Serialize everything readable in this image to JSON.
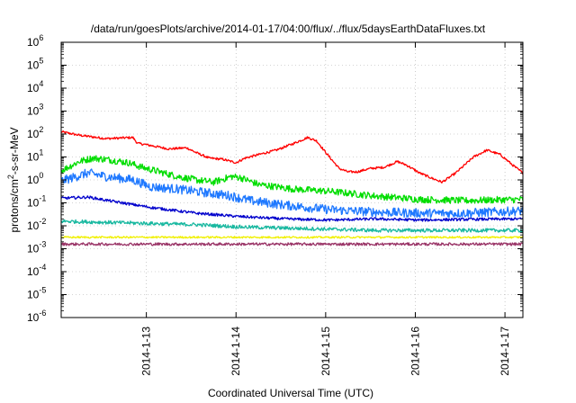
{
  "chart_data": {
    "type": "line",
    "title": "/data/run/goesPlots/archive/2014-01-17/04:00/flux/../flux/5daysEarthDataFluxes.txt",
    "xlabel": "Coordinated Universal Time (UTC)",
    "ylabel": {
      "base": "protons/cm",
      "sup": "2",
      "rest": "-s-sr-MeV"
    },
    "yscale": "log",
    "ylim_exp": [
      -6,
      6
    ],
    "xlim_days": [
      0,
      5.15
    ],
    "x_ticks": [
      {
        "day": 0.95,
        "label": "2014-1-13"
      },
      {
        "day": 1.95,
        "label": "2014-1-14"
      },
      {
        "day": 2.95,
        "label": "2014-1-15"
      },
      {
        "day": 3.95,
        "label": "2014-1-16"
      },
      {
        "day": 4.95,
        "label": "2014-1-17"
      }
    ],
    "y_ticks_exp": [
      -6,
      -5,
      -4,
      -3,
      -2,
      -1,
      0,
      1,
      2,
      3,
      4,
      5,
      6
    ],
    "grid": true,
    "legend": "none",
    "series": [
      {
        "color": "#ff0000",
        "noise": 0.05,
        "profile": [
          [
            0,
            2.1
          ],
          [
            0.2,
            1.95
          ],
          [
            0.5,
            1.8
          ],
          [
            0.8,
            1.85
          ],
          [
            0.85,
            1.6
          ],
          [
            1.0,
            1.5
          ],
          [
            1.2,
            1.35
          ],
          [
            1.4,
            1.4
          ],
          [
            1.5,
            1.2
          ],
          [
            1.65,
            0.95
          ],
          [
            1.8,
            0.9
          ],
          [
            1.95,
            0.75
          ],
          [
            2.05,
            0.95
          ],
          [
            2.2,
            1.1
          ],
          [
            2.4,
            1.3
          ],
          [
            2.6,
            1.6
          ],
          [
            2.75,
            1.85
          ],
          [
            2.85,
            1.7
          ],
          [
            2.95,
            1.2
          ],
          [
            3.1,
            0.5
          ],
          [
            3.2,
            0.35
          ],
          [
            3.3,
            0.35
          ],
          [
            3.45,
            0.5
          ],
          [
            3.6,
            0.55
          ],
          [
            3.75,
            0.8
          ],
          [
            3.85,
            0.65
          ],
          [
            4.0,
            0.3
          ],
          [
            4.15,
            0.05
          ],
          [
            4.25,
            -0.1
          ],
          [
            4.4,
            0.3
          ],
          [
            4.6,
            1.0
          ],
          [
            4.75,
            1.3
          ],
          [
            4.9,
            1.1
          ],
          [
            5.05,
            0.6
          ],
          [
            5.15,
            0.3
          ]
        ]
      },
      {
        "color": "#00dd00",
        "noise": 0.15,
        "profile": [
          [
            0,
            0.4
          ],
          [
            0.2,
            0.8
          ],
          [
            0.35,
            0.95
          ],
          [
            0.5,
            0.9
          ],
          [
            0.75,
            0.75
          ],
          [
            0.9,
            0.55
          ],
          [
            1.1,
            0.35
          ],
          [
            1.3,
            0.15
          ],
          [
            1.5,
            0.0
          ],
          [
            1.7,
            -0.1
          ],
          [
            1.9,
            0.15
          ],
          [
            2.0,
            0.1
          ],
          [
            2.2,
            -0.2
          ],
          [
            2.6,
            -0.4
          ],
          [
            3.0,
            -0.5
          ],
          [
            3.5,
            -0.7
          ],
          [
            4.0,
            -0.85
          ],
          [
            4.5,
            -0.9
          ],
          [
            5.15,
            -0.85
          ]
        ]
      },
      {
        "color": "#1e78ff",
        "noise": 0.2,
        "profile": [
          [
            0,
            -0.05
          ],
          [
            0.3,
            0.3
          ],
          [
            0.5,
            0.15
          ],
          [
            0.8,
            0.0
          ],
          [
            1.0,
            -0.3
          ],
          [
            1.3,
            -0.4
          ],
          [
            1.6,
            -0.55
          ],
          [
            1.9,
            -0.7
          ],
          [
            2.1,
            -0.9
          ],
          [
            2.5,
            -1.1
          ],
          [
            3.0,
            -1.3
          ],
          [
            3.5,
            -1.4
          ],
          [
            4.0,
            -1.45
          ],
          [
            4.5,
            -1.45
          ],
          [
            5.15,
            -1.35
          ]
        ]
      },
      {
        "color": "#0000cc",
        "noise": 0.06,
        "profile": [
          [
            0,
            -0.8
          ],
          [
            0.3,
            -0.75
          ],
          [
            0.6,
            -0.95
          ],
          [
            1.0,
            -1.2
          ],
          [
            1.5,
            -1.45
          ],
          [
            2.0,
            -1.6
          ],
          [
            2.5,
            -1.7
          ],
          [
            3.0,
            -1.75
          ],
          [
            3.5,
            -1.7
          ],
          [
            4.0,
            -1.75
          ],
          [
            4.5,
            -1.72
          ],
          [
            5.15,
            -1.7
          ]
        ]
      },
      {
        "color": "#18b8a0",
        "noise": 0.08,
        "profile": [
          [
            0,
            -1.8
          ],
          [
            0.5,
            -1.85
          ],
          [
            1.0,
            -1.9
          ],
          [
            1.5,
            -1.95
          ],
          [
            2.0,
            -2.05
          ],
          [
            2.5,
            -2.1
          ],
          [
            3.0,
            -2.15
          ],
          [
            3.5,
            -2.2
          ],
          [
            4.0,
            -2.2
          ],
          [
            5.15,
            -2.2
          ]
        ]
      },
      {
        "color": "#f0f000",
        "noise": 0.04,
        "profile": [
          [
            0,
            -2.5
          ],
          [
            5.15,
            -2.5
          ]
        ]
      },
      {
        "color": "#993366",
        "noise": 0.06,
        "profile": [
          [
            0,
            -2.8
          ],
          [
            5.15,
            -2.8
          ]
        ]
      }
    ]
  }
}
